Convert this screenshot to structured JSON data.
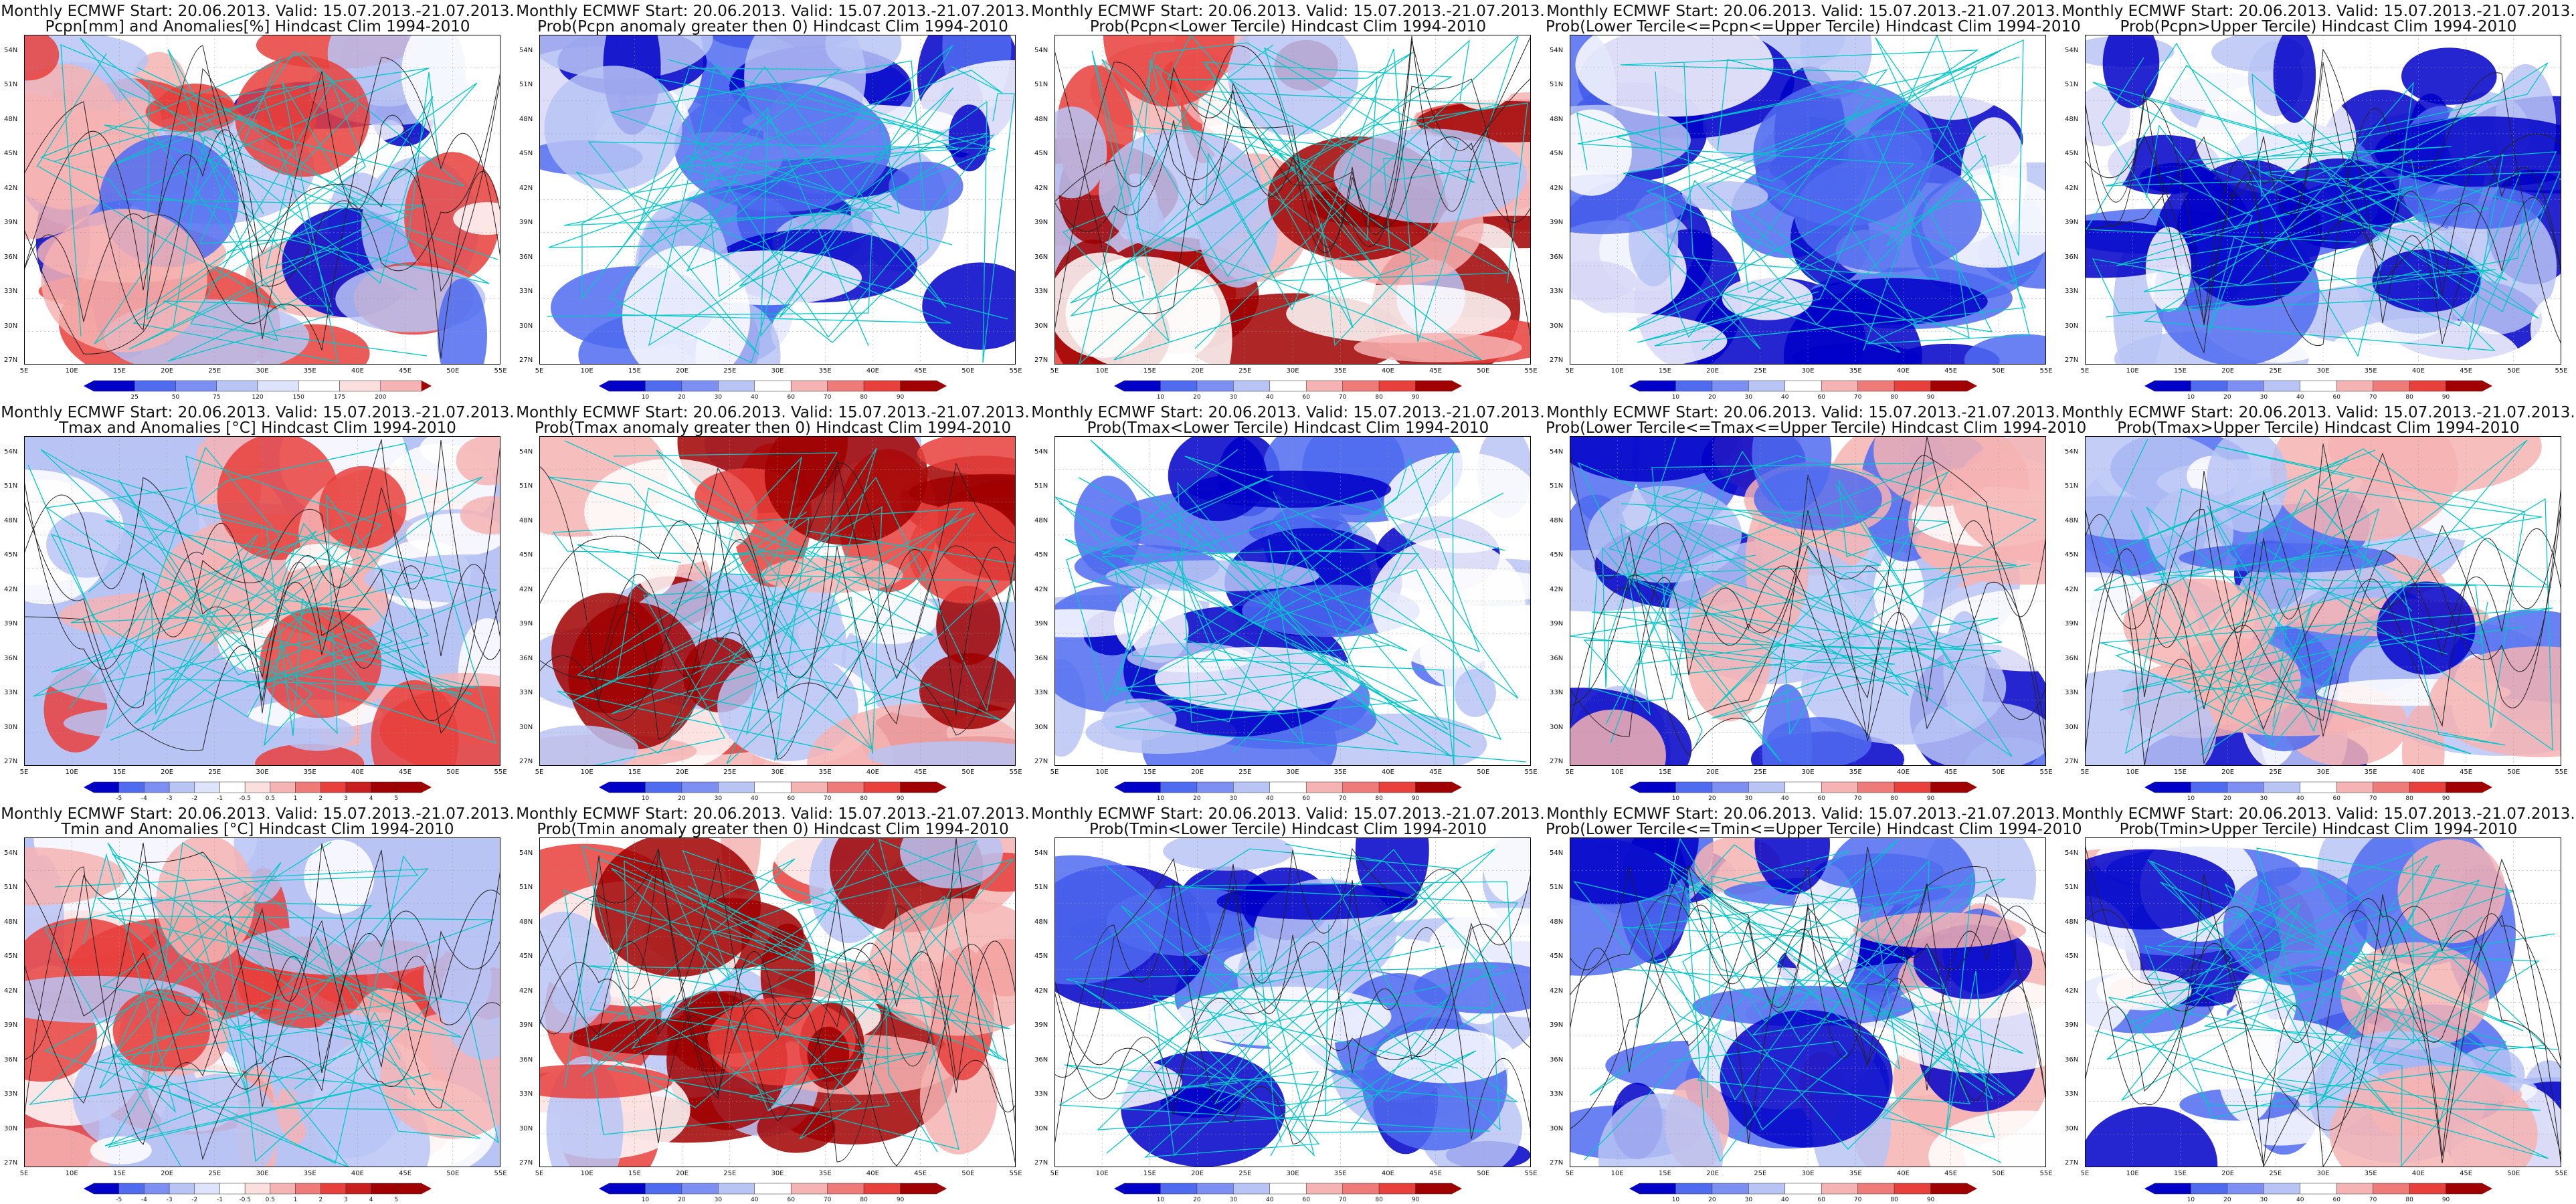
{
  "panels": [
    {
      "id": "p1",
      "title1": "Monthly ECMWF Start: 20.06.2013. Valid: 15.07.2013.-21.07.2013.",
      "title2": "Pcpn[mm] and Anomalies[%] Hindcast Clim 1994-2010",
      "scheme": "div",
      "cbar_labels": [
        "25",
        "50",
        "75",
        "120",
        "150",
        "175",
        "200"
      ]
    },
    {
      "id": "p2",
      "title1": "Monthly ECMWF Start: 20.06.2013. Valid: 15.07.2013.-21.07.2013.",
      "title2": "Prob(Pcpn anomaly greater then 0) Hindcast Clim 1994-2010",
      "scheme": "blue",
      "cbar_labels": [
        "10",
        "20",
        "30",
        "40",
        "60",
        "70",
        "80",
        "90"
      ]
    },
    {
      "id": "p3",
      "title1": "Monthly ECMWF Start: 20.06.2013. Valid: 15.07.2013.-21.07.2013.",
      "title2": "Prob(Pcpn<Lower Tercile) Hindcast Clim 1994-2010",
      "scheme": "red",
      "cbar_labels": [
        "10",
        "20",
        "30",
        "40",
        "60",
        "70",
        "80",
        "90"
      ]
    },
    {
      "id": "p4",
      "title1": "Monthly ECMWF Start: 20.06.2013. Valid: 15.07.2013.-21.07.2013.",
      "title2": "Prob(Lower Tercile<=Pcpn<=Upper Tercile) Hindcast Clim 1994-2010",
      "scheme": "blue",
      "cbar_labels": [
        "10",
        "20",
        "30",
        "40",
        "60",
        "70",
        "80",
        "90"
      ]
    },
    {
      "id": "p5",
      "title1": "Monthly ECMWF Start: 20.06.2013. Valid: 15.07.2013.-21.07.2013.",
      "title2": "Prob(Pcpn>Upper Tercile) Hindcast Clim 1994-2010",
      "scheme": "blue",
      "cbar_labels": [
        "10",
        "20",
        "30",
        "40",
        "60",
        "70",
        "80",
        "90"
      ]
    },
    {
      "id": "p6",
      "title1": "Monthly ECMWF Start: 20.06.2013. Valid: 15.07.2013.-21.07.2013.",
      "title2": "Tmax and Anomalies [°C] Hindcast Clim 1994-2010",
      "scheme": "warm",
      "cbar_labels": [
        "-5",
        "-4",
        "-3",
        "-2",
        "-1",
        "-0.5",
        "0.5",
        "1",
        "2",
        "3",
        "4",
        "5"
      ]
    },
    {
      "id": "p7",
      "title1": "Monthly ECMWF Start: 20.06.2013. Valid: 15.07.2013.-21.07.2013.",
      "title2": "Prob(Tmax anomaly greater then 0) Hindcast Clim 1994-2010",
      "scheme": "red",
      "cbar_labels": [
        "10",
        "20",
        "30",
        "40",
        "60",
        "70",
        "80",
        "90"
      ]
    },
    {
      "id": "p8",
      "title1": "Monthly ECMWF Start: 20.06.2013. Valid: 15.07.2013.-21.07.2013.",
      "title2": "Prob(Tmax<Lower Tercile) Hindcast Clim 1994-2010",
      "scheme": "blue",
      "cbar_labels": [
        "10",
        "20",
        "30",
        "40",
        "60",
        "70",
        "80",
        "90"
      ]
    },
    {
      "id": "p9",
      "title1": "Monthly ECMWF Start: 20.06.2013. Valid: 15.07.2013.-21.07.2013.",
      "title2": "Prob(Lower Tercile<=Tmax<=Upper Tercile) Hindcast Clim 1994-2010",
      "scheme": "mix",
      "cbar_labels": [
        "10",
        "20",
        "30",
        "40",
        "60",
        "70",
        "80",
        "90"
      ]
    },
    {
      "id": "p10",
      "title1": "Monthly ECMWF Start: 20.06.2013. Valid: 15.07.2013.-21.07.2013.",
      "title2": "Prob(Tmax>Upper Tercile) Hindcast Clim 1994-2010",
      "scheme": "mix",
      "cbar_labels": [
        "10",
        "20",
        "30",
        "40",
        "60",
        "70",
        "80",
        "90"
      ]
    },
    {
      "id": "p11",
      "title1": "Monthly ECMWF Start: 20.06.2013. Valid: 15.07.2013.-21.07.2013.",
      "title2": "Tmin and Anomalies [°C] Hindcast Clim 1994-2010",
      "scheme": "warm",
      "cbar_labels": [
        "-5",
        "-4",
        "-3",
        "-2",
        "-1",
        "-0.5",
        "0.5",
        "1",
        "2",
        "3",
        "4",
        "5"
      ]
    },
    {
      "id": "p12",
      "title1": "Monthly ECMWF Start: 20.06.2013. Valid: 15.07.2013.-21.07.2013.",
      "title2": "Prob(Tmin anomaly greater then 0) Hindcast Clim 1994-2010",
      "scheme": "red",
      "cbar_labels": [
        "10",
        "20",
        "30",
        "40",
        "60",
        "70",
        "80",
        "90"
      ]
    },
    {
      "id": "p13",
      "title1": "Monthly ECMWF Start: 20.06.2013. Valid: 15.07.2013.-21.07.2013.",
      "title2": "Prob(Tmin<Lower Tercile) Hindcast Clim 1994-2010",
      "scheme": "blue",
      "cbar_labels": [
        "10",
        "20",
        "30",
        "40",
        "60",
        "70",
        "80",
        "90"
      ]
    },
    {
      "id": "p14",
      "title1": "Monthly ECMWF Start: 20.06.2013. Valid: 15.07.2013.-21.07.2013.",
      "title2": "Prob(Lower Tercile<=Tmin<=Upper Tercile) Hindcast Clim 1994-2010",
      "scheme": "mix",
      "cbar_labels": [
        "10",
        "20",
        "30",
        "40",
        "60",
        "70",
        "80",
        "90"
      ]
    },
    {
      "id": "p15",
      "title1": "Monthly ECMWF Start: 20.06.2013. Valid: 15.07.2013.-21.07.2013.",
      "title2": "Prob(Tmin>Upper Tercile) Hindcast Clim 1994-2010",
      "scheme": "mix",
      "cbar_labels": [
        "10",
        "20",
        "30",
        "40",
        "60",
        "70",
        "80",
        "90"
      ]
    }
  ],
  "lat_labels": [
    "54N",
    "51N",
    "48N",
    "45N",
    "42N",
    "39N",
    "36N",
    "33N",
    "30N",
    "27N"
  ],
  "lon_labels": [
    "5E",
    "10E",
    "15E",
    "20E",
    "25E",
    "30E",
    "35E",
    "40E",
    "45E",
    "50E",
    "55E"
  ],
  "colors": {
    "deep_blue": "#0000c8",
    "mid_blue": "#4f6bf0",
    "light_blue": "#b8c4f4",
    "white": "#ffffff",
    "light_red": "#f6b3b3",
    "mid_red": "#e8403c",
    "deep_red": "#a00000",
    "coastline": "#00c8c8",
    "contour": "#222222"
  }
}
